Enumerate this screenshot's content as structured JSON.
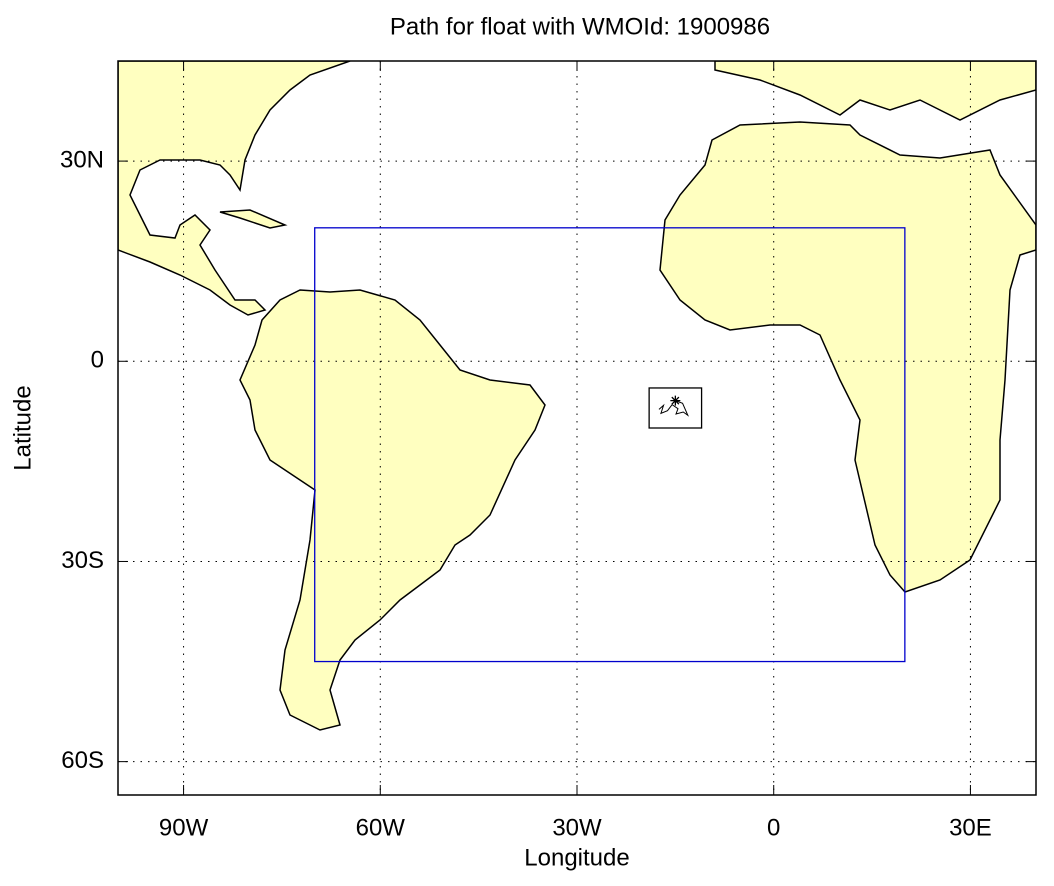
{
  "chart_data": {
    "type": "map",
    "title": "Path for float with WMOId: 1900986",
    "xlabel": "Longitude",
    "ylabel": "Latitude",
    "xlim": [
      -100,
      40
    ],
    "ylim": [
      -65,
      45
    ],
    "xticks": [
      {
        "value": -90,
        "label": "90W"
      },
      {
        "value": -60,
        "label": "60W"
      },
      {
        "value": -30,
        "label": "30W"
      },
      0,
      {
        "value": 30,
        "label": "30E"
      }
    ],
    "yticks": [
      {
        "value": -60,
        "label": "60S"
      },
      {
        "value": -30,
        "label": "30S"
      },
      0,
      {
        "value": 30,
        "label": "30N"
      }
    ],
    "grid": true,
    "land_color": "#ffffc0",
    "boxes": [
      {
        "color": "#0000cc",
        "lon": [
          -70,
          20
        ],
        "lat": [
          -45,
          20
        ]
      },
      {
        "color": "#000000",
        "lon": [
          -19,
          -11
        ],
        "lat": [
          -10,
          -4
        ]
      }
    ],
    "track": {
      "color": "#000000",
      "lon": [
        -17.5,
        -16.8,
        -17.2,
        -16.2,
        -15.5,
        -14.6,
        -14.9,
        -13.8,
        -13.1,
        -13.9,
        -15.0
      ],
      "lat": [
        -7.2,
        -6.6,
        -7.8,
        -7.4,
        -6.5,
        -7.1,
        -7.9,
        -7.6,
        -8.1,
        -6.3,
        -5.9
      ]
    }
  }
}
